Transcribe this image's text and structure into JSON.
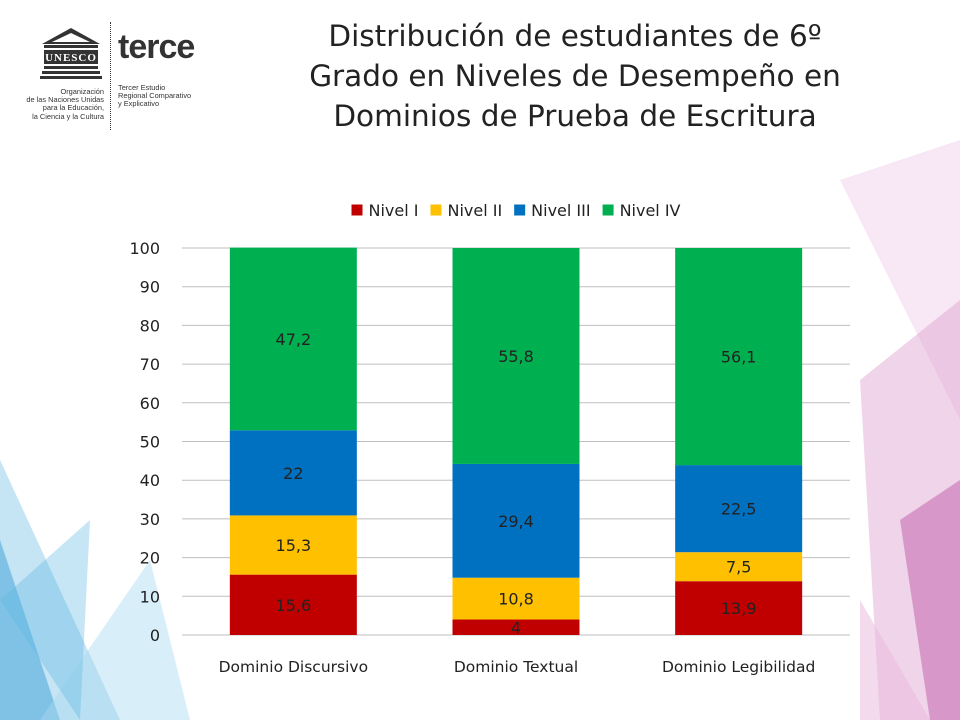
{
  "logos": {
    "unesco_name": "UNESCO",
    "unesco_text": "Organización\nde las Naciones Unidas\npara la Educación,\nla Ciencia y la Cultura",
    "terce_name": "terce",
    "terce_text": "Tercer Estudio\nRegional Comparativo\ny Explicativo"
  },
  "chart_data": {
    "type": "bar",
    "stacked": true,
    "title": "Distribución de estudiantes de 6º\nGrado en Niveles de Desempeño en\nDominios de Prueba de Escritura",
    "categories": [
      "Dominio Discursivo",
      "Dominio Textual",
      "Dominio Legibilidad"
    ],
    "series": [
      {
        "name": "Nivel I",
        "values": [
          15.6,
          4,
          13.9
        ],
        "labels": [
          "15,6",
          "4",
          "13,9"
        ],
        "color": "#c00000"
      },
      {
        "name": "Nivel II",
        "values": [
          15.3,
          10.8,
          7.5
        ],
        "labels": [
          "15,3",
          "10,8",
          "7,5"
        ],
        "color": "#ffc000"
      },
      {
        "name": "Nivel III",
        "values": [
          22,
          29.4,
          22.5
        ],
        "labels": [
          "22",
          "29,4",
          "22,5"
        ],
        "color": "#0070c0"
      },
      {
        "name": "Nivel IV",
        "values": [
          47.2,
          55.8,
          56.1
        ],
        "labels": [
          "47,2",
          "55,8",
          "56,1"
        ],
        "color": "#00b050"
      }
    ],
    "ylim": [
      0,
      100
    ],
    "yticks": [
      0,
      10,
      20,
      30,
      40,
      50,
      60,
      70,
      80,
      90,
      100
    ],
    "grid": true,
    "legend": "top"
  }
}
